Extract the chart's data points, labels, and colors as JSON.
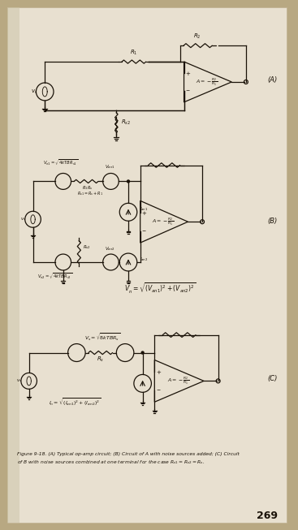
{
  "bg_color": "#b8a882",
  "page_color": "#e8e0d0",
  "fig_width": 3.67,
  "fig_height": 6.53,
  "caption_line1": "Figure 9-18. (A) Typical op-amp circuit; (B) Circuit of A with noise sources added; (C) Circuit",
  "caption_line2": "of B with noise sources combined at one terminal for the case R",
  "page_number": "269",
  "label_A": "(A)",
  "label_B": "(B)",
  "label_C": "(C)",
  "text_color": "#1a1208",
  "line_color": "#1a1208"
}
